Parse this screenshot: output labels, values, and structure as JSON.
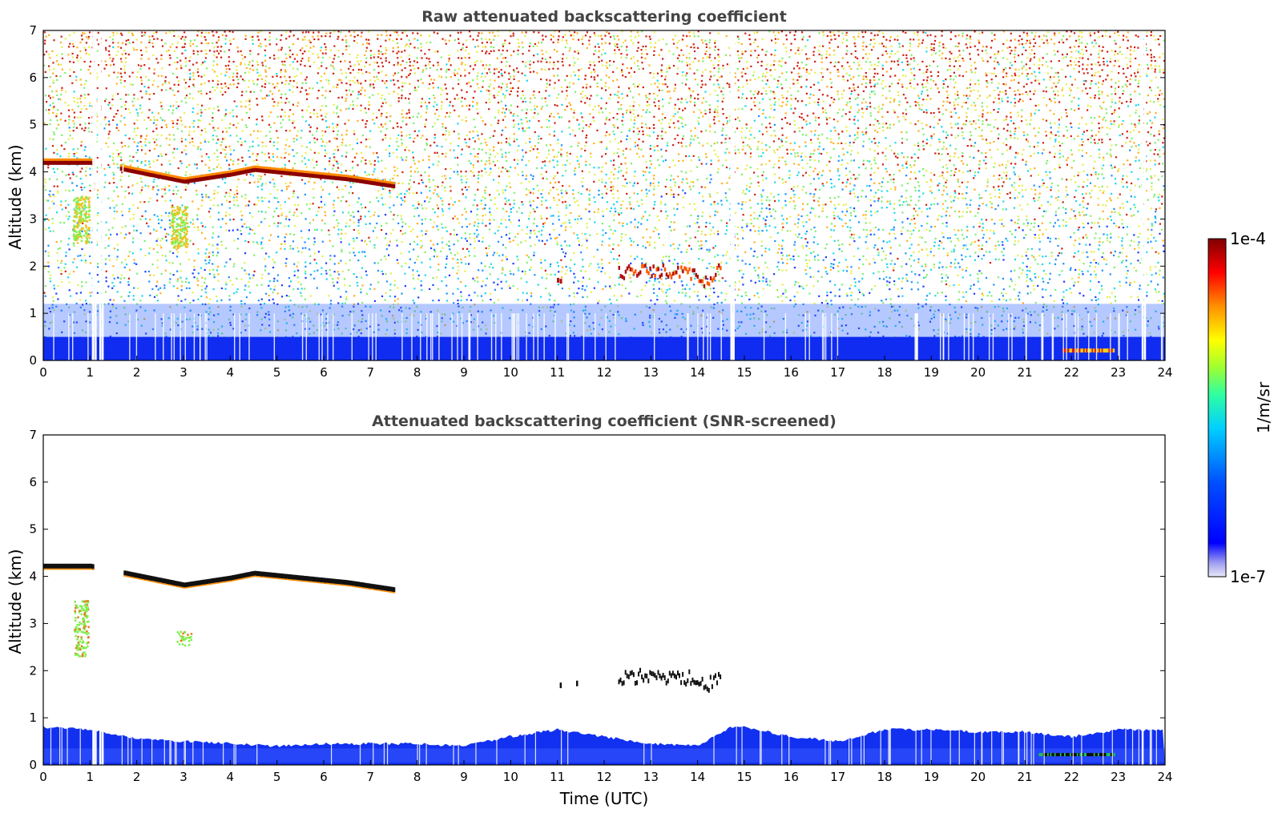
{
  "chart_data": [
    {
      "type": "heatmap",
      "title": "Raw attenuated backscattering coefficient",
      "xlabel": "",
      "ylabel": "Altitude (km)",
      "xlim": [
        0,
        24
      ],
      "ylim": [
        0,
        7
      ],
      "x_ticks": [
        0,
        1,
        2,
        3,
        4,
        5,
        6,
        7,
        8,
        9,
        10,
        11,
        12,
        13,
        14,
        15,
        16,
        17,
        18,
        19,
        20,
        21,
        22,
        23,
        24
      ],
      "y_ticks": [
        0,
        1,
        2,
        3,
        4,
        5,
        6,
        7
      ],
      "grid": false,
      "features": {
        "cloud_layer_upper": [
          {
            "t": 0.0,
            "alt": 4.2
          },
          {
            "t": 1.0,
            "alt": 4.2
          },
          {
            "t": 2.0,
            "alt": 4.0
          },
          {
            "t": 3.0,
            "alt": 3.8
          },
          {
            "t": 4.0,
            "alt": 3.95
          },
          {
            "t": 4.5,
            "alt": 4.05
          },
          {
            "t": 5.5,
            "alt": 3.95
          },
          {
            "t": 6.5,
            "alt": 3.85
          },
          {
            "t": 7.5,
            "alt": 3.7
          }
        ],
        "cloud_layer_mid": [
          {
            "t": 12.3,
            "alt": 1.85
          },
          {
            "t": 13.0,
            "alt": 1.9
          },
          {
            "t": 13.8,
            "alt": 1.85
          },
          {
            "t": 14.2,
            "alt": 1.65
          },
          {
            "t": 14.5,
            "alt": 2.0
          }
        ],
        "boundary_layer_top_km": 0.5
      },
      "colorbar": {
        "min_label": "1e-7",
        "max_label": "1e-4",
        "label": "1/m/sr"
      }
    },
    {
      "type": "heatmap",
      "title": "Attenuated backscattering coefficient (SNR-screened)",
      "xlabel": "Time (UTC)",
      "ylabel": "Altitude (km)",
      "xlim": [
        0,
        24
      ],
      "ylim": [
        0,
        7
      ],
      "x_ticks": [
        0,
        1,
        2,
        3,
        4,
        5,
        6,
        7,
        8,
        9,
        10,
        11,
        12,
        13,
        14,
        15,
        16,
        17,
        18,
        19,
        20,
        21,
        22,
        23,
        24
      ],
      "y_ticks": [
        0,
        1,
        2,
        3,
        4,
        5,
        6,
        7
      ],
      "grid": false,
      "features": {
        "boundary_layer_top": [
          {
            "t": 0,
            "alt": 0.8
          },
          {
            "t": 1,
            "alt": 0.75
          },
          {
            "t": 2,
            "alt": 0.55
          },
          {
            "t": 3,
            "alt": 0.5
          },
          {
            "t": 4,
            "alt": 0.45
          },
          {
            "t": 5,
            "alt": 0.4
          },
          {
            "t": 6,
            "alt": 0.45
          },
          {
            "t": 7,
            "alt": 0.45
          },
          {
            "t": 8,
            "alt": 0.45
          },
          {
            "t": 9,
            "alt": 0.4
          },
          {
            "t": 10,
            "alt": 0.6
          },
          {
            "t": 11,
            "alt": 0.75
          },
          {
            "t": 12,
            "alt": 0.6
          },
          {
            "t": 13,
            "alt": 0.45
          },
          {
            "t": 14,
            "alt": 0.4
          },
          {
            "t": 14.7,
            "alt": 0.8
          },
          {
            "t": 15,
            "alt": 0.8
          },
          {
            "t": 16,
            "alt": 0.6
          },
          {
            "t": 17,
            "alt": 0.5
          },
          {
            "t": 18,
            "alt": 0.75
          },
          {
            "t": 19,
            "alt": 0.75
          },
          {
            "t": 20,
            "alt": 0.7
          },
          {
            "t": 21,
            "alt": 0.7
          },
          {
            "t": 22,
            "alt": 0.6
          },
          {
            "t": 23,
            "alt": 0.75
          },
          {
            "t": 24,
            "alt": 0.75
          }
        ]
      },
      "colorbar": {
        "min_label": "1e-7",
        "max_label": "1e-4",
        "label": "1/m/sr"
      }
    }
  ],
  "colorbar": {
    "max_label": "1e-4",
    "min_label": "1e-7",
    "unit_label": "1/m/sr",
    "colors": [
      "#e8e8f8",
      "#0000ff",
      "#00b4ff",
      "#00ffd0",
      "#7fff00",
      "#ffff00",
      "#ff8000",
      "#ff0000",
      "#800000"
    ]
  }
}
